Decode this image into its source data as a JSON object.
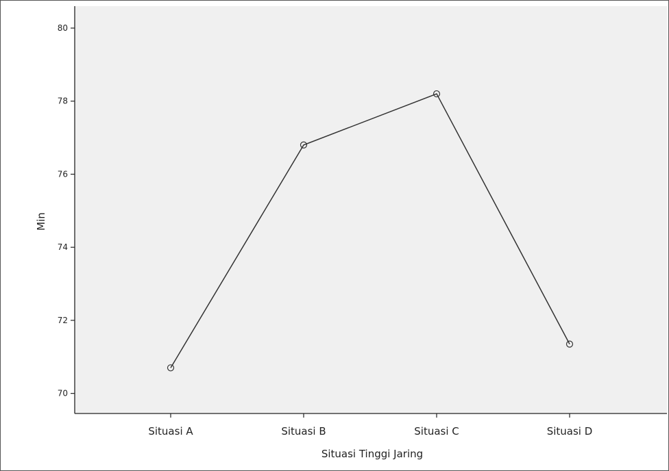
{
  "colors": {
    "plot_background": "#f0f0f0",
    "line": "#333333",
    "axis": "#222222",
    "text": "#222222"
  },
  "chart_data": {
    "type": "line",
    "title": "",
    "xlabel": "Situasi Tinggi Jaring",
    "ylabel": "Min",
    "categories": [
      "Situasi A",
      "Situasi B",
      "Situasi C",
      "Situasi D"
    ],
    "series": [
      {
        "values": [
          70.7,
          76.8,
          78.2,
          71.35
        ],
        "marker": "open-circle"
      }
    ],
    "ylim": [
      69.45,
      80.6
    ],
    "yticks": [
      70,
      72,
      74,
      76,
      78,
      80
    ],
    "ytick_labels": [
      "70",
      "72",
      "74",
      "76",
      "78",
      "80"
    ],
    "grid": false,
    "legend": "none"
  }
}
